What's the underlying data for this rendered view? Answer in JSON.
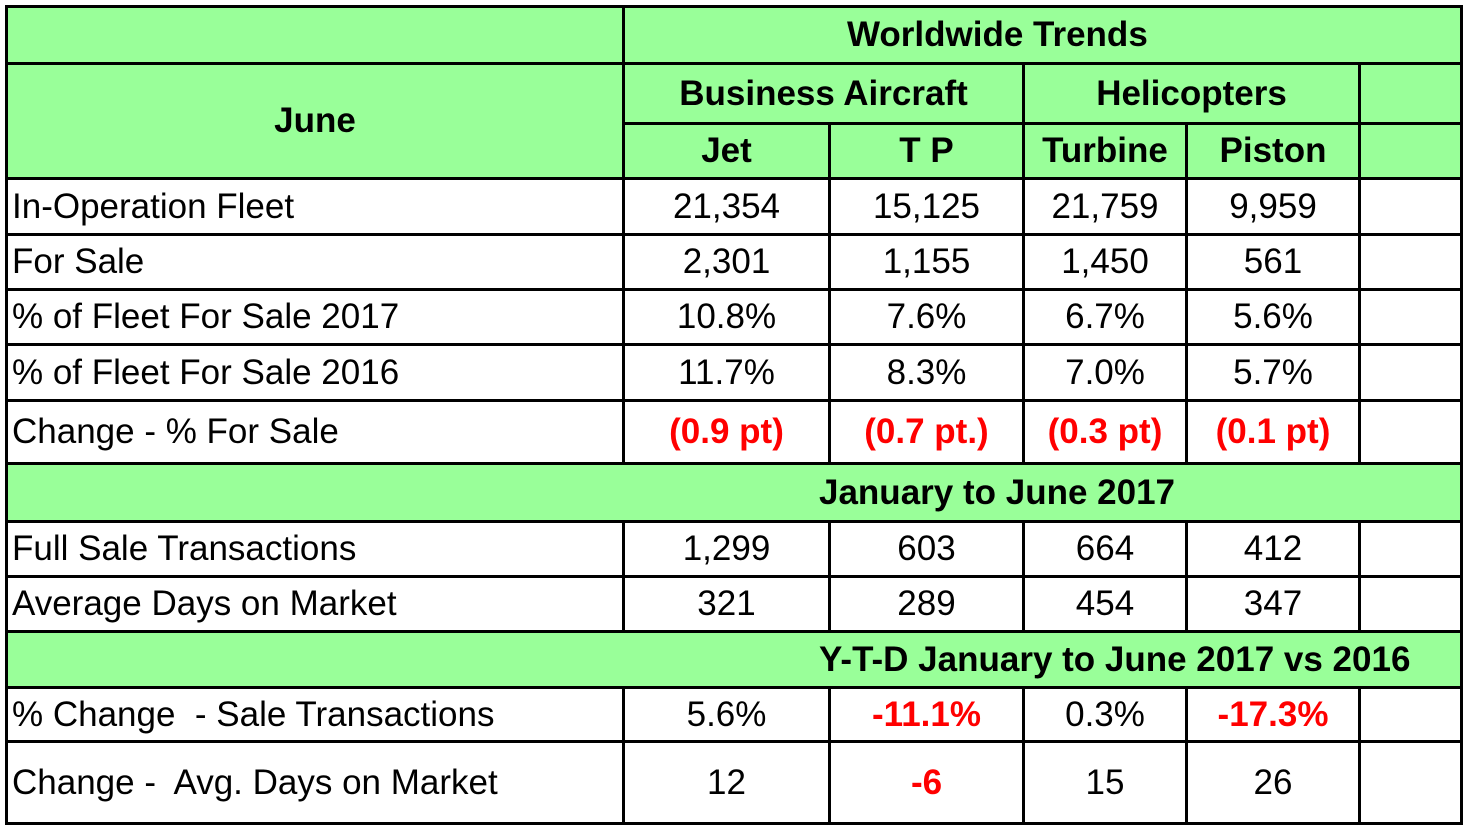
{
  "header": {
    "title": "Worldwide Trends",
    "period": "June",
    "groups": [
      "Business Aircraft",
      "Helicopters"
    ],
    "columns": [
      "Jet",
      "T P",
      "Turbine",
      "Piston"
    ]
  },
  "sections": [
    {
      "rows": [
        {
          "label": "In-Operation Fleet",
          "values": [
            "21,354",
            "15,125",
            "21,759",
            "9,959"
          ],
          "highlight": [
            false,
            false,
            false,
            false
          ]
        },
        {
          "label": "For Sale",
          "values": [
            "2,301",
            "1,155",
            "1,450",
            "561"
          ],
          "highlight": [
            false,
            false,
            false,
            false
          ]
        },
        {
          "label": "% of Fleet For Sale 2017",
          "values": [
            "10.8%",
            "7.6%",
            "6.7%",
            "5.6%"
          ],
          "highlight": [
            false,
            false,
            false,
            false
          ]
        },
        {
          "label": "% of Fleet For Sale 2016",
          "values": [
            "11.7%",
            "8.3%",
            "7.0%",
            "5.7%"
          ],
          "highlight": [
            false,
            false,
            false,
            false
          ]
        },
        {
          "label": "Change - % For Sale",
          "values": [
            "(0.9 pt)",
            "(0.7 pt.)",
            "(0.3 pt)",
            "(0.1 pt)"
          ],
          "highlight": [
            true,
            true,
            true,
            true
          ]
        }
      ]
    },
    {
      "title": "January to June 2017",
      "rows": [
        {
          "label": "Full Sale Transactions",
          "values": [
            "1,299",
            "603",
            "664",
            "412"
          ],
          "highlight": [
            false,
            false,
            false,
            false
          ]
        },
        {
          "label": "Average Days on Market",
          "values": [
            "321",
            "289",
            "454",
            "347"
          ],
          "highlight": [
            false,
            false,
            false,
            false
          ]
        }
      ]
    },
    {
      "title": "Y-T-D January to June 2017 vs 2016",
      "rows": [
        {
          "label": "% Change  - Sale Transactions",
          "values": [
            "5.6%",
            "-11.1%",
            "0.3%",
            "-17.3%"
          ],
          "highlight": [
            false,
            true,
            false,
            true
          ]
        },
        {
          "label": "Change -  Avg. Days on Market",
          "values": [
            "12",
            "-6",
            "15",
            "26"
          ],
          "highlight": [
            false,
            true,
            false,
            false
          ]
        }
      ]
    }
  ],
  "highlight_color": "#ff0000"
}
